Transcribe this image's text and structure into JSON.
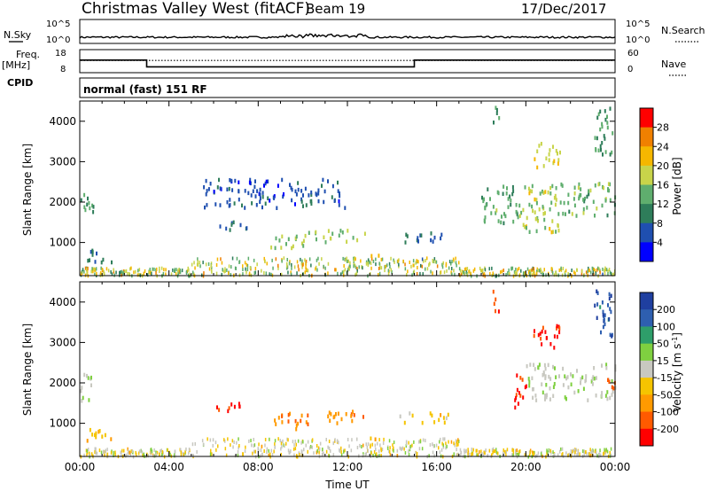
{
  "header": {
    "station": "Christmas Valley West (fitACF)",
    "beam": "Beam 19",
    "date": "17/Dec/2017"
  },
  "info_panels": {
    "nsky_label": "N.Sky",
    "nsky_ticks": [
      "10^5",
      "10^0"
    ],
    "nsearch_label": "N.Search",
    "nsearch_ticks": [
      "10^5",
      "10^0"
    ],
    "freq_label_1": "Freq.",
    "freq_label_2": "[MHz]",
    "freq_ticks": [
      "18",
      "8"
    ],
    "nave_label": "Nave",
    "nave_ticks": [
      "60",
      "0"
    ],
    "cpid_label": "CPID",
    "cpid_value": "normal (fast) 151 RF",
    "freq_steps": [
      {
        "start": 0,
        "end": 3,
        "freq_mhz": 13.5
      },
      {
        "start": 3,
        "end": 15,
        "freq_mhz": 10.3
      },
      {
        "start": 15,
        "end": 24,
        "freq_mhz": 13.5
      }
    ],
    "nave_dotted_level": 32
  },
  "chart_data": [
    {
      "type": "heatmap",
      "name": "power",
      "xlabel": "",
      "ylabel": "Slant Range [km]",
      "x_range_hours": [
        0,
        24
      ],
      "ylim": [
        180,
        4500
      ],
      "yticks": [
        "1000",
        "2000",
        "3000",
        "4000"
      ],
      "colorbar_label": "Power [dB]",
      "colorbar_ticks": [
        "28",
        "24",
        "20",
        "16",
        "12",
        "8",
        "4"
      ],
      "colorbar_colors": [
        "#0000ff",
        "#1f4fb0",
        "#2e7d5a",
        "#5fae6e",
        "#c8d44a",
        "#f5b700",
        "#f08000",
        "#ff0000"
      ],
      "regions": [
        {
          "t0": 0.0,
          "t1": 0.6,
          "r0": 1600,
          "r1": 2300,
          "level": 0.4
        },
        {
          "t0": 0.2,
          "t1": 1.4,
          "r0": 550,
          "r1": 900,
          "level": 0.25
        },
        {
          "t0": 6.1,
          "t1": 7.8,
          "r0": 1350,
          "r1": 1550,
          "level": 0.2
        },
        {
          "t0": 8.5,
          "t1": 10.3,
          "r0": 900,
          "r1": 1300,
          "level": 0.5
        },
        {
          "t0": 10.5,
          "t1": 12.8,
          "r0": 1050,
          "r1": 1350,
          "level": 0.5
        },
        {
          "t0": 13.0,
          "t1": 13.4,
          "r0": 650,
          "r1": 850,
          "level": 0.8
        },
        {
          "t0": 14.2,
          "t1": 16.5,
          "r0": 1050,
          "r1": 1300,
          "level": 0.2
        },
        {
          "t0": 18.0,
          "t1": 19.8,
          "r0": 1500,
          "r1": 2500,
          "level": 0.4
        },
        {
          "t0": 19.8,
          "t1": 21.5,
          "r0": 1300,
          "r1": 2500,
          "level": 0.55
        },
        {
          "t0": 21.0,
          "t1": 24.0,
          "r0": 1700,
          "r1": 2500,
          "level": 0.45
        },
        {
          "t0": 20.3,
          "t1": 21.5,
          "r0": 2900,
          "r1": 3500,
          "level": 0.6
        },
        {
          "t0": 23.0,
          "t1": 23.9,
          "r0": 3200,
          "r1": 4400,
          "level": 0.35
        },
        {
          "t0": 18.5,
          "t1": 18.8,
          "r0": 3800,
          "r1": 4400,
          "level": 0.3
        },
        {
          "t0": 5.5,
          "t1": 12.0,
          "r0": 1900,
          "r1": 2600,
          "level": 0.15
        }
      ]
    },
    {
      "type": "heatmap",
      "name": "velocity",
      "xlabel": "Time UT",
      "ylabel": "Slant Range [km]",
      "x_range_hours": [
        0,
        24
      ],
      "xticks": [
        "00:00",
        "04:00",
        "08:00",
        "12:00",
        "16:00",
        "20:00",
        "00:00"
      ],
      "ylim": [
        180,
        4500
      ],
      "yticks": [
        "1000",
        "2000",
        "3000",
        "4000"
      ],
      "colorbar_label": "Velocity [m s^-1]",
      "colorbar_ticks": [
        "200",
        "100",
        "50",
        "15",
        "-15",
        "-50",
        "-100",
        "-200"
      ],
      "colorbar_colors": [
        "#ff0000",
        "#ff5a00",
        "#ff9a00",
        "#f5c400",
        "#c8c8c0",
        "#7fd040",
        "#2e9e6a",
        "#2e5fb0",
        "#1f3fa0"
      ],
      "regions": [
        {
          "t0": 0.0,
          "t1": 0.6,
          "r0": 1600,
          "r1": 2300,
          "level": 0.55
        },
        {
          "t0": 0.2,
          "t1": 1.4,
          "r0": 550,
          "r1": 900,
          "level": 0.3
        },
        {
          "t0": 6.1,
          "t1": 7.8,
          "r0": 1350,
          "r1": 1550,
          "level": 0.02
        },
        {
          "t0": 8.5,
          "t1": 10.3,
          "r0": 900,
          "r1": 1300,
          "level": 0.18
        },
        {
          "t0": 10.5,
          "t1": 12.8,
          "r0": 1050,
          "r1": 1350,
          "level": 0.22
        },
        {
          "t0": 13.0,
          "t1": 13.4,
          "r0": 650,
          "r1": 850,
          "level": 0.25
        },
        {
          "t0": 14.2,
          "t1": 16.5,
          "r0": 1050,
          "r1": 1300,
          "level": 0.4
        },
        {
          "t0": 19.4,
          "t1": 20.0,
          "r0": 1400,
          "r1": 2300,
          "level": 0.02
        },
        {
          "t0": 20.0,
          "t1": 24.0,
          "r0": 1600,
          "r1": 2500,
          "level": 0.55
        },
        {
          "t0": 20.3,
          "t1": 21.6,
          "r0": 2900,
          "r1": 3500,
          "level": 0.02
        },
        {
          "t0": 23.0,
          "t1": 23.9,
          "r0": 3200,
          "r1": 4400,
          "level": 0.9
        },
        {
          "t0": 18.5,
          "t1": 18.8,
          "r0": 3800,
          "r1": 4400,
          "level": 0.05
        },
        {
          "t0": 23.5,
          "t1": 24.0,
          "r0": 1900,
          "r1": 2300,
          "level": 0.15
        }
      ]
    }
  ]
}
